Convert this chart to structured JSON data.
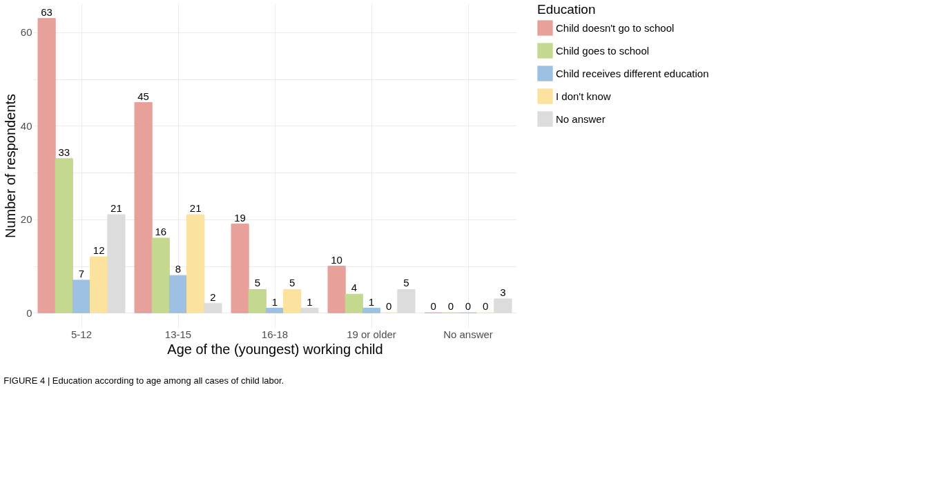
{
  "chart_data": {
    "type": "bar",
    "xlabel": "Age of the (youngest) working child",
    "ylabel": "Number of respondents",
    "legend_title": "Education",
    "categories": [
      "5-12",
      "13-15",
      "16-18",
      "19 or older",
      "No answer"
    ],
    "series": [
      {
        "name": "Child doesn't go to school",
        "color": "#e8a09a",
        "values": [
          63,
          45,
          19,
          10,
          0
        ]
      },
      {
        "name": "Child goes to school",
        "color": "#c5d88f",
        "values": [
          33,
          16,
          5,
          4,
          0
        ]
      },
      {
        "name": "Child receives different education",
        "color": "#9dc0e3",
        "values": [
          7,
          8,
          1,
          1,
          0
        ]
      },
      {
        "name": "I don't know",
        "color": "#fbe29f",
        "values": [
          12,
          21,
          5,
          0,
          0
        ]
      },
      {
        "name": "No answer",
        "color": "#dcdcdc",
        "values": [
          21,
          2,
          1,
          5,
          3
        ]
      }
    ],
    "ylim": [
      -3.2,
      66.2
    ],
    "yticks": [
      0,
      {
        "value": 10,
        "label": null
      },
      20,
      {
        "value": 30,
        "label": null
      },
      40,
      {
        "value": 50,
        "label": null
      },
      60
    ],
    "grid": true,
    "legend": "right",
    "data_labels": true,
    "annotations": [
      "FIGURE 4 | Education according to age among all cases of child labor."
    ]
  }
}
